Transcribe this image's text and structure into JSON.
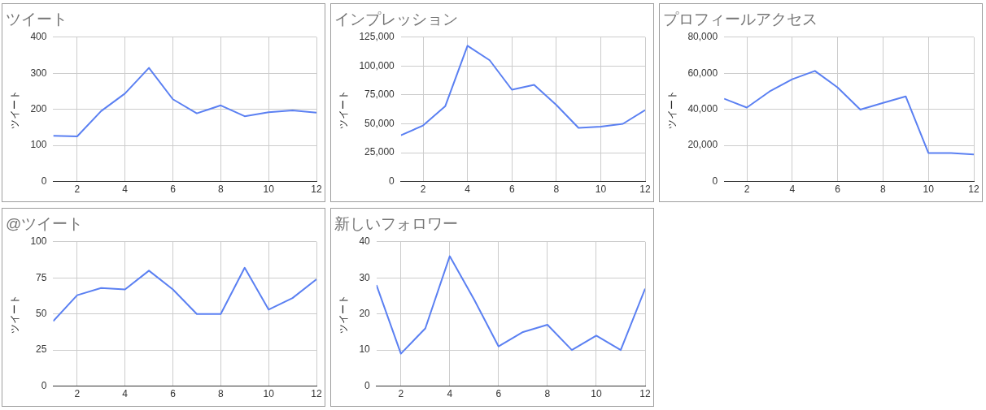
{
  "chart_data": [
    {
      "type": "line",
      "title": "ツイート",
      "ylabel": "ツイート",
      "x": [
        1,
        2,
        3,
        4,
        5,
        6,
        7,
        8,
        9,
        10,
        11,
        12
      ],
      "xlim": [
        1,
        12
      ],
      "xticks": [
        2,
        4,
        6,
        8,
        10,
        12
      ],
      "ylim": [
        0,
        400
      ],
      "yticks": [
        0,
        100,
        200,
        300,
        400
      ],
      "grid": true,
      "legend": false,
      "series": [
        {
          "color": "#5b80f2",
          "values": [
            127,
            125,
            195,
            244,
            315,
            228,
            189,
            211,
            181,
            192,
            197,
            191
          ]
        }
      ]
    },
    {
      "type": "line",
      "title": "インプレッション",
      "ylabel": "ツイート",
      "x": [
        1,
        2,
        3,
        4,
        5,
        6,
        7,
        8,
        9,
        10,
        11,
        12
      ],
      "xlim": [
        1,
        12
      ],
      "xticks": [
        2,
        4,
        6,
        8,
        10,
        12
      ],
      "ylim": [
        0,
        125000
      ],
      "yticks": [
        0,
        {
          "value": 25000,
          "label": "25,000"
        },
        {
          "value": 50000,
          "label": "50,000"
        },
        {
          "value": 75000,
          "label": "75,000"
        },
        {
          "value": 100000,
          "label": "100,000"
        },
        {
          "value": 125000,
          "label": "125,000"
        }
      ],
      "grid": true,
      "legend": false,
      "series": [
        {
          "color": "#5b80f2",
          "values": [
            40000,
            48500,
            65300,
            117600,
            105000,
            79500,
            83700,
            66300,
            46500,
            47500,
            50000,
            61900
          ]
        }
      ]
    },
    {
      "type": "line",
      "title": "プロフィールアクセス",
      "ylabel": "ツイート",
      "x": [
        1,
        2,
        3,
        4,
        5,
        6,
        7,
        8,
        9,
        10,
        11,
        12
      ],
      "xlim": [
        1,
        12
      ],
      "xticks": [
        2,
        4,
        6,
        8,
        10,
        12
      ],
      "ylim": [
        0,
        80000
      ],
      "yticks": [
        0,
        {
          "value": 20000,
          "label": "20,000"
        },
        {
          "value": 40000,
          "label": "40,000"
        },
        {
          "value": 60000,
          "label": "60,000"
        },
        {
          "value": 80000,
          "label": "80,000"
        }
      ],
      "grid": true,
      "legend": false,
      "series": [
        {
          "color": "#5b80f2",
          "values": [
            45900,
            41000,
            49900,
            56700,
            61300,
            52100,
            39900,
            43600,
            47200,
            15800,
            15800,
            15000
          ]
        }
      ]
    },
    {
      "type": "line",
      "title": "@ツイート",
      "ylabel": "ツイート",
      "x": [
        1,
        2,
        3,
        4,
        5,
        6,
        7,
        8,
        9,
        10,
        11,
        12
      ],
      "xlim": [
        1,
        12
      ],
      "xticks": [
        2,
        4,
        6,
        8,
        10,
        12
      ],
      "ylim": [
        0,
        100
      ],
      "yticks": [
        0,
        25,
        50,
        75,
        100
      ],
      "grid": true,
      "legend": false,
      "series": [
        {
          "color": "#5b80f2",
          "values": [
            45,
            63,
            68,
            67,
            80,
            67,
            50,
            50,
            82,
            53,
            61,
            74
          ]
        }
      ]
    },
    {
      "type": "line",
      "title": "新しいフォロワー",
      "ylabel": "ツイート",
      "x": [
        1,
        2,
        3,
        4,
        5,
        6,
        7,
        8,
        9,
        10,
        11,
        12
      ],
      "xlim": [
        1,
        12
      ],
      "xticks": [
        2,
        4,
        6,
        8,
        10,
        12
      ],
      "ylim": [
        0,
        40
      ],
      "yticks": [
        0,
        10,
        20,
        30,
        40
      ],
      "grid": true,
      "legend": false,
      "series": [
        {
          "color": "#5b80f2",
          "values": [
            28,
            9,
            16,
            36,
            24,
            11,
            15,
            17,
            10,
            14,
            10,
            27
          ]
        }
      ]
    }
  ]
}
